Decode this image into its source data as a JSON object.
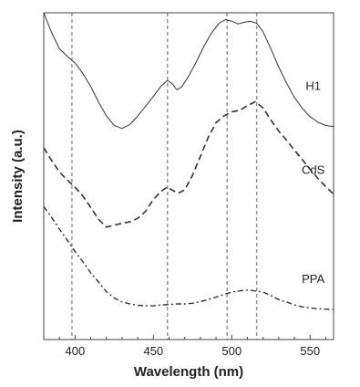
{
  "chart_data": {
    "type": "line",
    "title": "",
    "xlabel": "Wavelength (nm)",
    "ylabel": "Intensity (a.u.)",
    "xlim": [
      380,
      565
    ],
    "ylim": [
      0,
      100
    ],
    "xticks": [
      400,
      450,
      500,
      550
    ],
    "yticks": [],
    "grid": false,
    "reference_lines_x": [
      398,
      459,
      497,
      516
    ],
    "series": [
      {
        "name": "H1",
        "style": "solid",
        "color": "#333333",
        "points": [
          [
            380,
            100
          ],
          [
            385,
            94
          ],
          [
            390,
            89
          ],
          [
            395,
            86.7
          ],
          [
            400,
            84.6
          ],
          [
            405,
            81.4
          ],
          [
            410,
            77.4
          ],
          [
            415,
            72.6
          ],
          [
            420,
            68.4
          ],
          [
            425,
            65.5
          ],
          [
            430,
            64.6
          ],
          [
            435,
            65.8
          ],
          [
            440,
            68.4
          ],
          [
            445,
            71.4
          ],
          [
            450,
            74.4
          ],
          [
            455,
            77.6
          ],
          [
            459,
            79.3
          ],
          [
            462,
            78.3
          ],
          [
            465,
            76.4
          ],
          [
            468,
            77.3
          ],
          [
            472,
            80.2
          ],
          [
            477,
            84.6
          ],
          [
            482,
            89.5
          ],
          [
            487,
            93.8
          ],
          [
            492,
            96.8
          ],
          [
            496,
            97.9
          ],
          [
            500,
            97.4
          ],
          [
            504,
            96.6
          ],
          [
            508,
            97.1
          ],
          [
            512,
            97.4
          ],
          [
            516,
            96.8
          ],
          [
            520,
            94.2
          ],
          [
            525,
            89
          ],
          [
            530,
            83.4
          ],
          [
            535,
            78.5
          ],
          [
            540,
            74.1
          ],
          [
            545,
            70.8
          ],
          [
            550,
            68.2
          ],
          [
            555,
            66.5
          ],
          [
            560,
            65.5
          ],
          [
            565,
            65.2
          ]
        ]
      },
      {
        "name": "CdS",
        "style": "dashed",
        "color": "#333333",
        "points": [
          [
            380,
            58.7
          ],
          [
            385,
            54.8
          ],
          [
            390,
            51.3
          ],
          [
            395,
            48.8
          ],
          [
            400,
            46.6
          ],
          [
            405,
            43.9
          ],
          [
            410,
            40.4
          ],
          [
            415,
            36.8
          ],
          [
            420,
            34.4
          ],
          [
            425,
            35
          ],
          [
            430,
            35.6
          ],
          [
            435,
            36
          ],
          [
            440,
            37.1
          ],
          [
            445,
            39.2
          ],
          [
            450,
            42.9
          ],
          [
            455,
            45.4
          ],
          [
            459,
            46.7
          ],
          [
            462,
            45.7
          ],
          [
            466,
            44.8
          ],
          [
            470,
            45.8
          ],
          [
            475,
            50.3
          ],
          [
            480,
            56.1
          ],
          [
            485,
            61.9
          ],
          [
            490,
            66.4
          ],
          [
            495,
            68.4
          ],
          [
            500,
            69.7
          ],
          [
            505,
            70.1
          ],
          [
            510,
            71.6
          ],
          [
            515,
            72.8
          ],
          [
            520,
            70.9
          ],
          [
            525,
            67.2
          ],
          [
            530,
            63.8
          ],
          [
            535,
            61
          ],
          [
            540,
            58
          ],
          [
            545,
            55.1
          ],
          [
            550,
            52.1
          ],
          [
            555,
            49.3
          ],
          [
            560,
            46.8
          ],
          [
            565,
            44.5
          ]
        ]
      },
      {
        "name": "PPA",
        "style": "dashdot",
        "color": "#333333",
        "points": [
          [
            380,
            40.7
          ],
          [
            385,
            37.4
          ],
          [
            390,
            33.8
          ],
          [
            395,
            30.4
          ],
          [
            400,
            26.9
          ],
          [
            405,
            23.8
          ],
          [
            410,
            20.4
          ],
          [
            415,
            17.6
          ],
          [
            420,
            14.6
          ],
          [
            425,
            12.7
          ],
          [
            430,
            11.5
          ],
          [
            435,
            10.9
          ],
          [
            440,
            10.5
          ],
          [
            445,
            10.3
          ],
          [
            450,
            10.3
          ],
          [
            455,
            10.6
          ],
          [
            460,
            10.7
          ],
          [
            465,
            10.9
          ],
          [
            470,
            10.9
          ],
          [
            475,
            11.1
          ],
          [
            480,
            11.6
          ],
          [
            485,
            12.2
          ],
          [
            490,
            13
          ],
          [
            495,
            13.8
          ],
          [
            500,
            14.5
          ],
          [
            505,
            14.9
          ],
          [
            510,
            15.1
          ],
          [
            515,
            14.9
          ],
          [
            520,
            14.5
          ],
          [
            525,
            13.5
          ],
          [
            530,
            12.2
          ],
          [
            535,
            11.5
          ],
          [
            540,
            10.6
          ],
          [
            545,
            10
          ],
          [
            550,
            9.7
          ],
          [
            555,
            9.4
          ],
          [
            560,
            9.3
          ],
          [
            565,
            9.2
          ]
        ]
      }
    ]
  }
}
